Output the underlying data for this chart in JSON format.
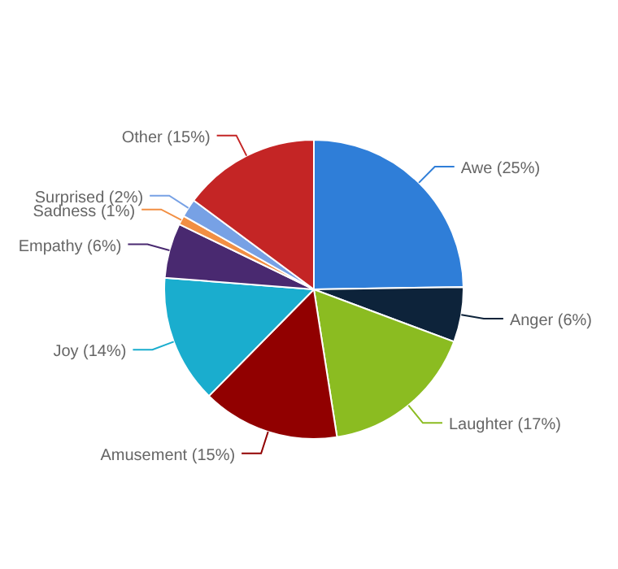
{
  "chart_data": {
    "type": "pie",
    "categories": [
      "Awe",
      "Anger",
      "Laughter",
      "Amusement",
      "Joy",
      "Empathy",
      "Sadness",
      "Surprised",
      "Other"
    ],
    "values": [
      25,
      6,
      17,
      15,
      14,
      6,
      1,
      2,
      15
    ],
    "value_labels": [
      "(25%)",
      "(6%)",
      "(17%)",
      "(15%)",
      "(14%)",
      "(6%)",
      "(1%)",
      "(2%)",
      "(15%)"
    ],
    "colors": [
      "#2f7ed8",
      "#0d233a",
      "#8bbc21",
      "#910000",
      "#1aadce",
      "#492970",
      "#f28f43",
      "#77a1e5",
      "#c42525"
    ],
    "legend": false
  }
}
